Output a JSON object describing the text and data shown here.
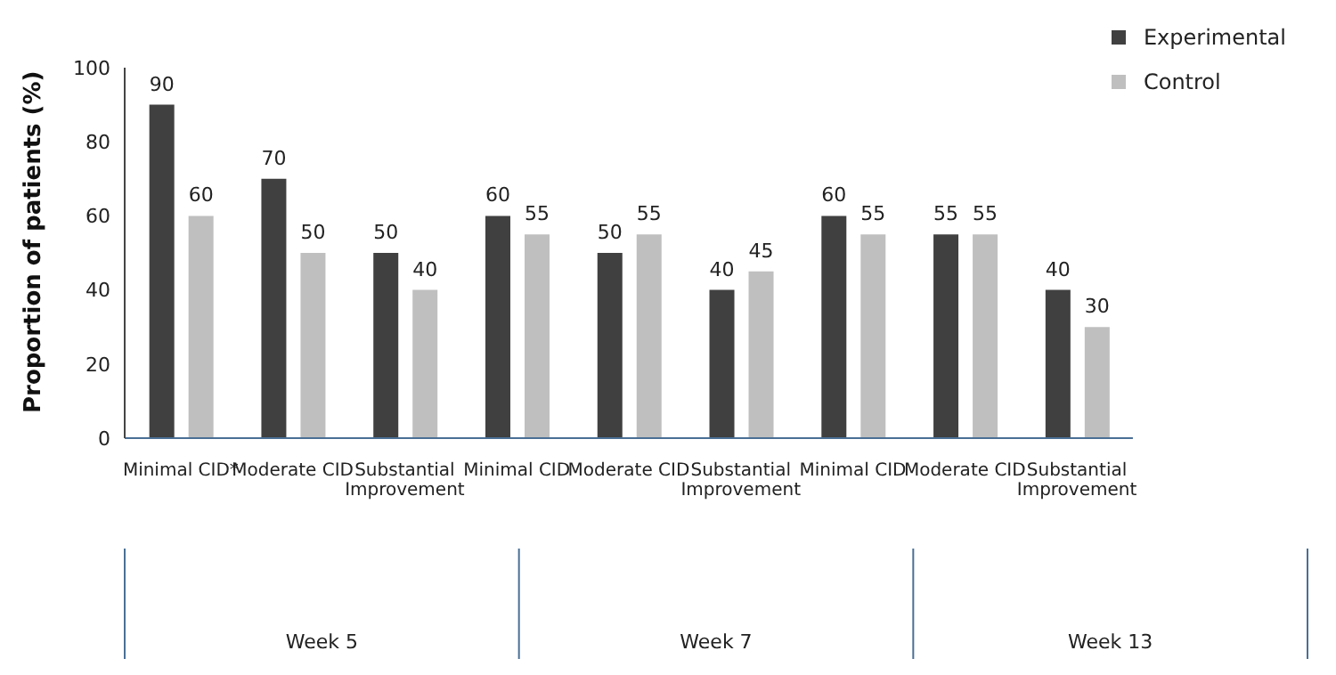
{
  "chart_data": {
    "type": "bar",
    "ylabel": "Proportion of patients (%)",
    "categories": [
      "Minimal CID*",
      "Moderate CID",
      "Substantial Improvement",
      "Minimal CID",
      "Moderate CID",
      "Substantial Improvement",
      "Minimal CID",
      "Moderate CID",
      "Substantial Improvement"
    ],
    "series": [
      {
        "name": "Experimental",
        "color": "#404040",
        "values": [
          90,
          70,
          50,
          60,
          50,
          40,
          60,
          55,
          40
        ]
      },
      {
        "name": "Control",
        "color": "#bfbfbf",
        "values": [
          60,
          50,
          40,
          55,
          55,
          45,
          55,
          55,
          30
        ]
      }
    ],
    "annotations": [
      "Week 5",
      "Week 7",
      "Week 13"
    ],
    "ylim": [
      0,
      100
    ],
    "yticks": [
      0,
      20,
      40,
      60,
      80,
      100
    ],
    "grid": false,
    "legend": "top right",
    "data_labels": true
  }
}
